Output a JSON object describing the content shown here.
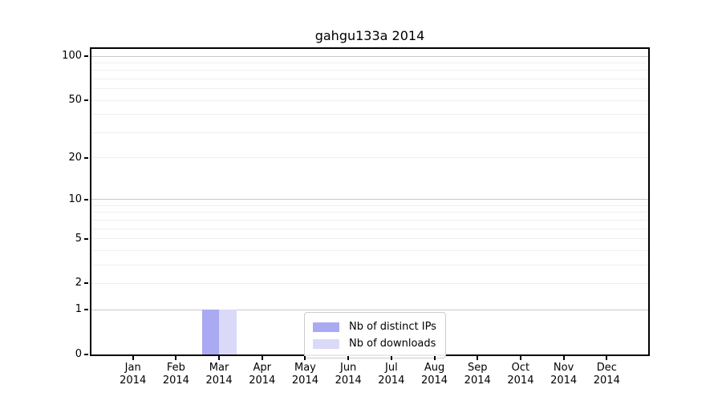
{
  "chart_data": {
    "type": "bar",
    "title": "gahgu133a 2014",
    "year_label": "2014",
    "categories": [
      "Jan",
      "Feb",
      "Mar",
      "Apr",
      "May",
      "Jun",
      "Jul",
      "Aug",
      "Sep",
      "Oct",
      "Nov",
      "Dec"
    ],
    "series": [
      {
        "name": "Nb of distinct IPs",
        "color": "#aaaaf2",
        "values": [
          0,
          0,
          1,
          0,
          0,
          0,
          0,
          0,
          0,
          0,
          0,
          0
        ]
      },
      {
        "name": "Nb of downloads",
        "color": "#dadaf8",
        "values": [
          0,
          0,
          1,
          0,
          0,
          0,
          0,
          0,
          0,
          0,
          0,
          0
        ]
      }
    ],
    "xlabel": "",
    "ylabel": "",
    "yscale": "log1p",
    "ylim": [
      0,
      113
    ],
    "y_ticks": [
      0,
      1,
      2,
      5,
      10,
      20,
      50,
      100
    ],
    "major_gridlines": [
      1,
      10,
      100
    ],
    "minor_gridlines": [
      2,
      3,
      4,
      5,
      6,
      7,
      8,
      9,
      20,
      30,
      40,
      50,
      60,
      70,
      80,
      90
    ],
    "grid": "on",
    "legend_position": "lower center",
    "colors": {
      "axis": "#000000",
      "major_grid": "#c8c8c8",
      "minor_grid": "#efefef",
      "legend_border": "#cccccc",
      "background": "#ffffff"
    }
  }
}
